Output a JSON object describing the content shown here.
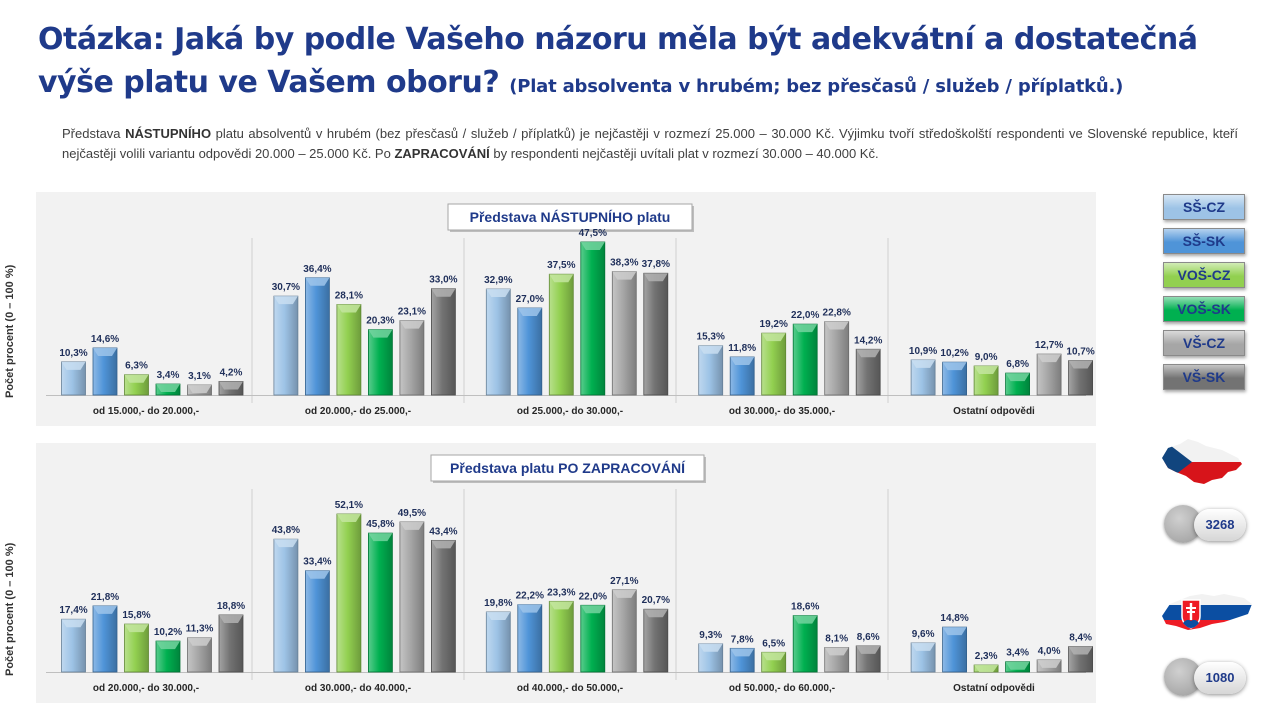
{
  "title": {
    "main_line1": "Otázka: Jaká by podle Vašeho názoru měla být adekvátní a dostatečná",
    "main_line2": "výše platu ve Vašem oboru?",
    "note": "(Plat absolventa v hrubém; bez přesčasů / služeb / příplatků.)"
  },
  "description": {
    "p1": "Představa ",
    "b1": "NÁSTUPNÍHO",
    "p2": " platu absolventů v hrubém (bez přesčasů / služeb / příplatků) je nejčastěji v rozmezí 25.000 – 30.000 Kč. Výjimku tvoří středoškolští respondenti ve Slovenské republice, kteří nejčastěji volili variantu odpovědi 20.000 – 25.000 Kč. Po ",
    "b2": "ZAPRACOVÁNÍ",
    "p3": " by respondenti nejčastěji uvítali plat v rozmezí 30.000 – 40.000 Kč."
  },
  "legend": [
    {
      "label": "SŠ-CZ",
      "color": "#9dc3e6"
    },
    {
      "label": "SŠ-SK",
      "color": "#4f94d8"
    },
    {
      "label": "VOŠ-CZ",
      "color": "#92d050"
    },
    {
      "label": "VOŠ-SK",
      "color": "#00b050"
    },
    {
      "label": "VŠ-CZ",
      "color": "#a6a6a6"
    },
    {
      "label": "VŠ-SK",
      "color": "#737373"
    }
  ],
  "counts": {
    "cz": "3268",
    "sk": "1080"
  },
  "chart_data": [
    {
      "type": "bar",
      "title": "Představa NÁSTUPNÍHO platu",
      "ylabel": "Počet procent  (0 – 100 %)",
      "ylim": [
        0,
        50
      ],
      "categories": [
        "od 15.000,- do 20.000,-",
        "od 20.000,- do 25.000,-",
        "od 25.000,- do 30.000,-",
        "od 30.000,- do 35.000,-",
        "Ostatní odpovědi"
      ],
      "series": [
        {
          "name": "SŠ-CZ",
          "values": [
            10.3,
            30.7,
            32.9,
            15.3,
            10.9
          ],
          "labels": [
            "10,3%",
            "30,7%",
            "32,9%",
            "15,3%",
            "10,9%"
          ]
        },
        {
          "name": "SŠ-SK",
          "values": [
            14.6,
            36.4,
            27.0,
            11.8,
            10.2
          ],
          "labels": [
            "14,6%",
            "36,4%",
            "27,0%",
            "11,8%",
            "10,2%"
          ]
        },
        {
          "name": "VOŠ-CZ",
          "values": [
            6.3,
            28.1,
            37.5,
            19.2,
            9.0
          ],
          "labels": [
            "6,3%",
            "28,1%",
            "37,5%",
            "19,2%",
            "9,0%"
          ]
        },
        {
          "name": "VOŠ-SK",
          "values": [
            3.4,
            20.3,
            47.5,
            22.0,
            6.8
          ],
          "labels": [
            "3,4%",
            "20,3%",
            "47,5%",
            "22,0%",
            "6,8%"
          ]
        },
        {
          "name": "VŠ-CZ",
          "values": [
            3.1,
            23.1,
            38.3,
            22.8,
            12.7
          ],
          "labels": [
            "3,1%",
            "23,1%",
            "38,3%",
            "22,8%",
            "12,7%"
          ]
        },
        {
          "name": "VŠ-SK",
          "values": [
            4.2,
            33.0,
            37.8,
            14.2,
            10.7
          ],
          "labels": [
            "4,2%",
            "33,0%",
            "37,8%",
            "14,2%",
            "10,7%"
          ]
        }
      ]
    },
    {
      "type": "bar",
      "title": "Představa platu PO ZAPRACOVÁNÍ",
      "ylabel": "Počet procent  (0 – 100 %)",
      "ylim": [
        0,
        55
      ],
      "categories": [
        "od 20.000,- do 30.000,-",
        "od 30.000,- do 40.000,-",
        "od 40.000,- do 50.000,-",
        "od 50.000,- do 60.000,-",
        "Ostatní odpovědi"
      ],
      "series": [
        {
          "name": "SŠ-CZ",
          "values": [
            17.4,
            43.8,
            19.8,
            9.3,
            9.6
          ],
          "labels": [
            "17,4%",
            "43,8%",
            "19,8%",
            "9,3%",
            "9,6%"
          ]
        },
        {
          "name": "SŠ-SK",
          "values": [
            21.8,
            33.4,
            22.2,
            7.8,
            14.8
          ],
          "labels": [
            "21,8%",
            "33,4%",
            "22,2%",
            "7,8%",
            "14,8%"
          ]
        },
        {
          "name": "VOŠ-CZ",
          "values": [
            15.8,
            52.1,
            23.3,
            6.5,
            2.3
          ],
          "labels": [
            "15,8%",
            "52,1%",
            "23,3%",
            "6,5%",
            "2,3%"
          ]
        },
        {
          "name": "VOŠ-SK",
          "values": [
            10.2,
            45.8,
            22.0,
            18.6,
            3.4
          ],
          "labels": [
            "10,2%",
            "45,8%",
            "22,0%",
            "18,6%",
            "3,4%"
          ]
        },
        {
          "name": "VŠ-CZ",
          "values": [
            11.3,
            49.5,
            27.1,
            8.1,
            4.0
          ],
          "labels": [
            "11,3%",
            "49,5%",
            "27,1%",
            "8,1%",
            "4,0%"
          ]
        },
        {
          "name": "VŠ-SK",
          "values": [
            18.8,
            43.4,
            20.7,
            8.6,
            8.4
          ],
          "labels": [
            "18,8%",
            "43,4%",
            "20,7%",
            "8,6%",
            "8,4%"
          ]
        }
      ]
    }
  ]
}
